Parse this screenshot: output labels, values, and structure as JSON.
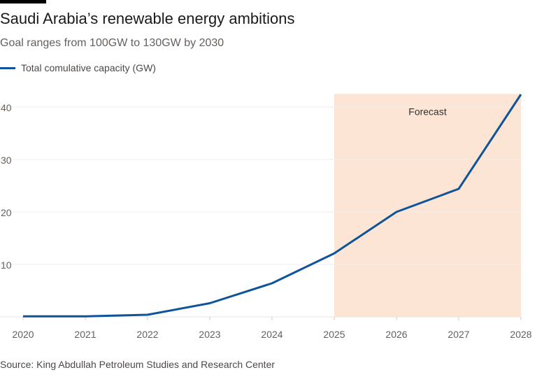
{
  "title": "Saudi Arabia’s renewable energy ambitions",
  "subtitle": "Goal ranges from 100GW to 130GW by 2030",
  "source": "Source: King Abdullah Petroleum Studies and Research Center",
  "colors": {
    "line": "#0f5499",
    "forecast_band": "#fce5d4",
    "grid": "#efeeec",
    "text": "#66605c"
  },
  "chart_data": {
    "type": "line",
    "title": "Saudi Arabia’s renewable energy ambitions",
    "subtitle": "Goal ranges from 100GW to 130GW by 2030",
    "xlabel": "",
    "ylabel": "",
    "x": [
      2020,
      2021,
      2022,
      2023,
      2024,
      2025,
      2026,
      2027,
      2028
    ],
    "x_tick_labels": [
      "2020",
      "2021",
      "2022",
      "2023",
      "2024",
      "2025",
      "2026",
      "2027",
      "2028"
    ],
    "y_ticks": [
      10,
      20,
      30,
      40
    ],
    "y_tick_labels": [
      "10",
      "20",
      "30",
      "40"
    ],
    "ylim": [
      0,
      42.5
    ],
    "xlim": [
      2020,
      2028
    ],
    "grid": true,
    "legend": "top-left",
    "series": [
      {
        "name": "Total comulative capacity (GW)",
        "values": [
          0.1,
          0.1,
          0.4,
          2.6,
          6.4,
          12.1,
          20.0,
          24.4,
          42.4
        ]
      }
    ],
    "annotations": [
      {
        "type": "shaded-region",
        "label": "Forecast",
        "x_from": 2025,
        "x_to": 2028
      }
    ]
  }
}
